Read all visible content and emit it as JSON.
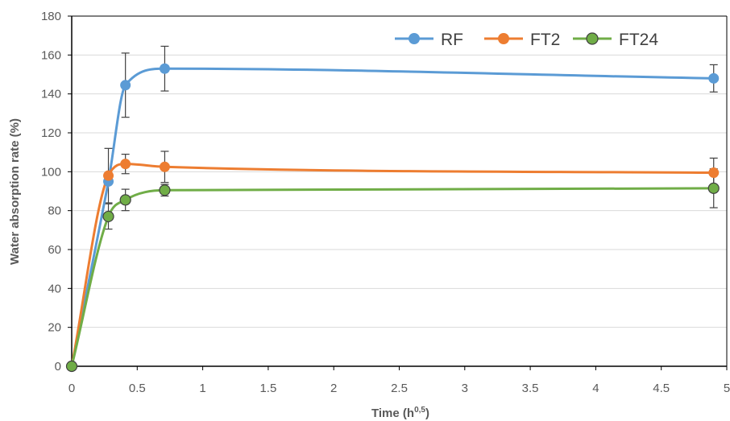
{
  "chart_data": {
    "type": "line",
    "xlabel": "Time (h",
    "xlabel_sup": "0,5",
    "xlabel_suffix": ")",
    "ylabel": "Water absorption rate (%)",
    "xlim": [
      0,
      5
    ],
    "ylim": [
      0,
      180
    ],
    "x_ticks": [
      0,
      0.5,
      1,
      1.5,
      2,
      2.5,
      3,
      3.5,
      4,
      4.5,
      5
    ],
    "x_tick_labels": [
      "0",
      "0.5",
      "1",
      "1.5",
      "2",
      "2.5",
      "3",
      "3.5",
      "4",
      "4.5",
      "5"
    ],
    "y_ticks": [
      0,
      20,
      40,
      60,
      80,
      100,
      120,
      140,
      160,
      180
    ],
    "y_tick_labels": [
      "0",
      "20",
      "40",
      "60",
      "80",
      "100",
      "120",
      "140",
      "160",
      "180"
    ],
    "grid": "horizontal",
    "legend_position": "top-right",
    "series": [
      {
        "name": "RF",
        "color": "#5B9BD5",
        "x": [
          0,
          0.28,
          0.41,
          0.71,
          4.9
        ],
        "y": [
          0,
          95,
          144.5,
          153,
          148
        ],
        "err": [
          0,
          0,
          16.5,
          11.5,
          7
        ]
      },
      {
        "name": "FT2",
        "color": "#ED7D31",
        "x": [
          0,
          0.28,
          0.41,
          0.71,
          4.9
        ],
        "y": [
          0,
          98,
          104,
          102.5,
          99.5
        ],
        "err": [
          0,
          14,
          5,
          8,
          7.5
        ]
      },
      {
        "name": "FT24",
        "color": "#70AD47",
        "x": [
          0,
          0.28,
          0.41,
          0.71,
          4.9
        ],
        "y": [
          0,
          77,
          85.5,
          90.5,
          91.5
        ],
        "err": [
          0,
          6.5,
          5.5,
          3,
          10
        ]
      }
    ]
  }
}
